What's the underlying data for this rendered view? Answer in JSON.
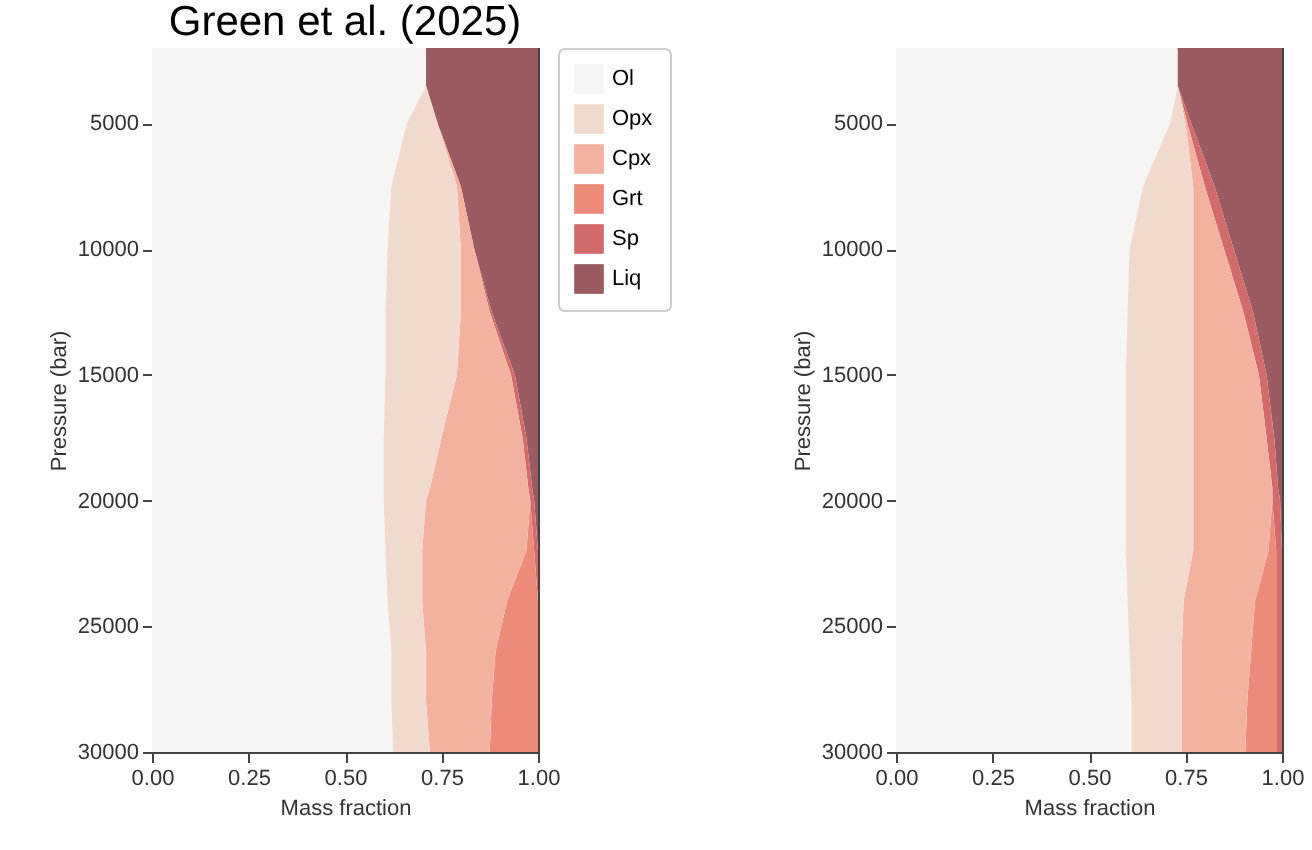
{
  "chart_data": [
    {
      "type": "area",
      "title": "Green et al. (2025)",
      "xlabel": "Mass fraction",
      "ylabel": "Pressure (bar)",
      "orientation": "horizontal",
      "stacked": true,
      "legend": "right",
      "grid": false,
      "x": [
        2000,
        3500,
        5000,
        7500,
        10000,
        12500,
        15000,
        17500,
        19500,
        20000,
        22000,
        24000,
        26000,
        28000,
        30000
      ],
      "xlim": [
        0,
        1
      ],
      "xticks": [
        {
          "value": 0,
          "label": "0.00"
        },
        {
          "value": 0.25,
          "label": "0.25"
        },
        {
          "value": 0.5,
          "label": "0.50"
        },
        {
          "value": 0.75,
          "label": "0.75"
        },
        {
          "value": 1,
          "label": "1.00"
        }
      ],
      "ylim": [
        30000,
        2000
      ],
      "yticks": [
        5000,
        10000,
        15000,
        20000,
        25000,
        30000
      ],
      "series": [
        {
          "name": "Ol",
          "color": "#f7f5f3",
          "values": [
            0.71,
            0.71,
            0.66,
            0.62,
            0.61,
            0.605,
            0.605,
            0.6,
            0.6,
            0.6,
            0.605,
            0.61,
            0.62,
            0.62,
            0.625
          ]
        },
        {
          "name": "Opx",
          "color": "#f2d9cd",
          "values": [
            0,
            0,
            0.08,
            0.17,
            0.19,
            0.195,
            0.185,
            0.15,
            0.12,
            0.11,
            0.095,
            0.09,
            0.09,
            0.09,
            0.095
          ]
        },
        {
          "name": "Cpx",
          "color": "#f3b2a0",
          "values": [
            0,
            0,
            0,
            0.01,
            0.035,
            0.075,
            0.14,
            0.21,
            0.255,
            0.27,
            0.27,
            0.22,
            0.18,
            0.17,
            0.155
          ]
        },
        {
          "name": "Grt",
          "color": "#ee8a7a",
          "values": [
            0,
            0,
            0,
            0,
            0,
            0,
            0,
            0,
            0,
            0,
            0.02,
            0.08,
            0.11,
            0.12,
            0.125
          ]
        },
        {
          "name": "Sp",
          "color": "#d46b6b",
          "values": [
            null,
            null,
            null,
            null,
            0,
            0.005,
            0.01,
            0.01,
            0.01,
            0.01,
            0.01,
            0,
            null,
            null,
            null
          ]
        },
        {
          "name": "Liq",
          "color": "#9a5b61",
          "values": [
            0.29,
            0.29,
            0.26,
            0.2,
            0.165,
            0.12,
            0.06,
            0.03,
            0.015,
            0.01,
            0,
            null,
            null,
            null,
            null
          ]
        }
      ]
    },
    {
      "type": "area",
      "xlabel": "Mass fraction",
      "ylabel": "Pressure (bar)",
      "orientation": "horizontal",
      "stacked": true,
      "grid": false,
      "x": [
        2000,
        3500,
        5000,
        7500,
        10000,
        12500,
        15000,
        17500,
        19500,
        20000,
        22000,
        24000,
        26000,
        28000,
        30000
      ],
      "xlim": [
        0,
        1
      ],
      "xticks": [
        {
          "value": 0,
          "label": "0.00"
        },
        {
          "value": 0.25,
          "label": "0.25"
        },
        {
          "value": 0.5,
          "label": "0.50"
        },
        {
          "value": 0.75,
          "label": "0.75"
        },
        {
          "value": 1,
          "label": "1.00"
        }
      ],
      "ylim": [
        30000,
        2000
      ],
      "yticks": [
        5000,
        10000,
        15000,
        20000,
        25000,
        30000
      ],
      "series": [
        {
          "color": "#f7f5f3",
          "values": [
            0.73,
            0.73,
            0.71,
            0.64,
            0.605,
            0.6,
            0.595,
            0.595,
            0.595,
            0.595,
            0.595,
            0.6,
            0.605,
            0.61,
            0.61
          ]
        },
        {
          "color": "#f2d9cd",
          "values": [
            0,
            0,
            0.04,
            0.13,
            0.165,
            0.17,
            0.175,
            0.175,
            0.175,
            0.175,
            0.175,
            0.145,
            0.135,
            0.13,
            0.13
          ]
        },
        {
          "color": "#f3b2a0",
          "values": [
            0,
            0,
            0.005,
            0.03,
            0.08,
            0.13,
            0.17,
            0.19,
            0.205,
            0.205,
            0.195,
            0.185,
            0.18,
            0.17,
            0.165
          ]
        },
        {
          "color": "#ee8a7a",
          "values": [
            0,
            0,
            0,
            0,
            0,
            0,
            0,
            0,
            0,
            0,
            0.02,
            0.055,
            0.065,
            0.075,
            0.08
          ]
        },
        {
          "color": "#d46b6b",
          "values": [
            0,
            0,
            0.01,
            0.025,
            0.025,
            0.025,
            0.02,
            0.02,
            0.015,
            0.02,
            0.015,
            0.015,
            0.015,
            0.015,
            0.015
          ]
        },
        {
          "color": "#9a5b61",
          "values": [
            0.27,
            0.27,
            0.235,
            0.175,
            0.125,
            0.075,
            0.04,
            0.02,
            0.01,
            0.005,
            0,
            null,
            null,
            null,
            null
          ]
        }
      ]
    }
  ]
}
